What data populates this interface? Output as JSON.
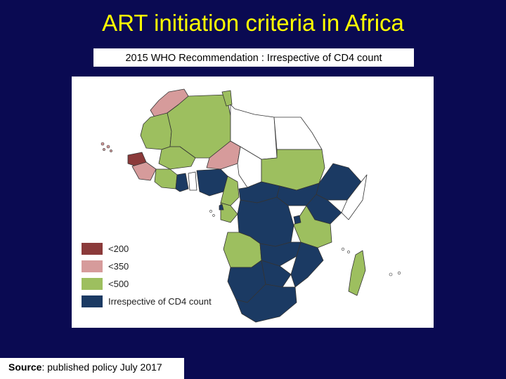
{
  "title": "ART initiation criteria in Africa",
  "subtitle": "2015 WHO Recommendation : Irrespective of CD4 count",
  "legend": [
    {
      "label": "<200",
      "color": "#8b3a3a"
    },
    {
      "label": "<350",
      "color": "#d69b9b"
    },
    {
      "label": "<500",
      "color": "#9dbf5f"
    },
    {
      "label": "Irrespective of CD4 count",
      "color": "#1b3a63"
    }
  ],
  "source": {
    "label": "Source",
    "text": ": published policy July 2017"
  },
  "colors": {
    "background": "#0a0a52",
    "title": "#ffff00",
    "no_data": "#ffffff"
  }
}
